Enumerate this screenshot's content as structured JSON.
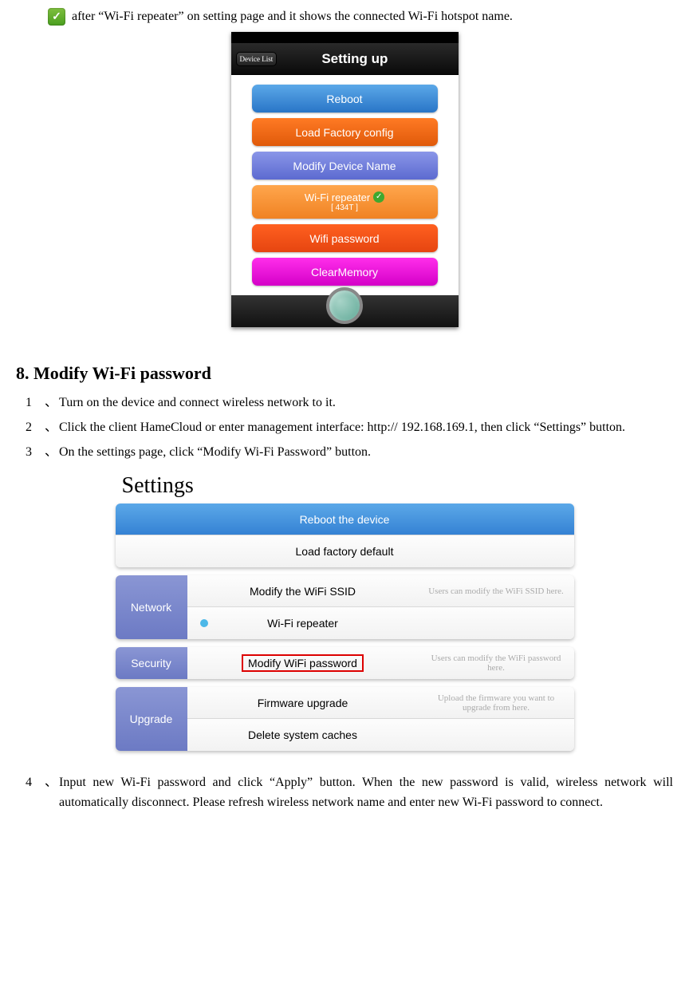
{
  "intro_text": "after “Wi-Fi repeater” on setting page and it shows the connected Wi-Fi hotspot name.",
  "phone": {
    "device_list_label": "Device List",
    "title": "Setting up",
    "buttons": {
      "reboot": "Reboot",
      "load_factory": "Load Factory config",
      "modify_name": "Modify Device Name",
      "repeater_label": "Wi-Fi repeater",
      "repeater_ssid": "[ 434T ]",
      "wifi_password": "Wifi password",
      "clear_memory": "ClearMemory"
    }
  },
  "section_heading": "8. Modify Wi-Fi password",
  "steps_a": [
    {
      "n": "1",
      "sep": "、",
      "t": "Turn on the device and connect wireless network to it."
    },
    {
      "n": "2",
      "sep": "、",
      "t": "Click the client HameCloud or enter management interface: http:// 192.168.169.1, then click “Settings” button."
    },
    {
      "n": "3",
      "sep": "、",
      "t": "On the settings page, click “Modify Wi-Fi Password” button."
    }
  ],
  "settings": {
    "title": "Settings",
    "top": {
      "reboot": "Reboot the device",
      "load": "Load factory default"
    },
    "network": {
      "label": "Network",
      "ssid": "Modify the WiFi SSID",
      "ssid_hint": "Users can modify the WiFi SSID here.",
      "repeater": "Wi-Fi repeater"
    },
    "security": {
      "label": "Security",
      "pwd": "Modify WiFi password",
      "pwd_hint": "Users can modify the WiFi password here."
    },
    "upgrade": {
      "label": "Upgrade",
      "fw": "Firmware upgrade",
      "fw_hint": "Upload the firmware you want to upgrade from here.",
      "cache": "Delete system caches"
    }
  },
  "steps_b": [
    {
      "n": "4",
      "sep": "、",
      "t": "Input new Wi-Fi password and click “Apply” button. When the new password is valid, wireless network will automatically disconnect. Please refresh wireless network name and enter new Wi-Fi password to connect."
    }
  ]
}
